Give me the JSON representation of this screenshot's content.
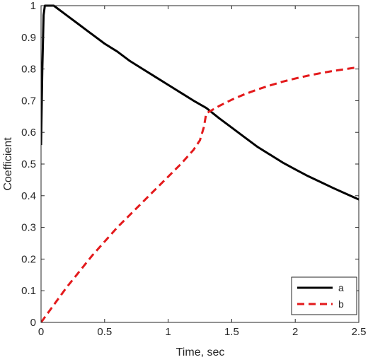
{
  "chart_data": {
    "type": "line",
    "xlabel": "Time, sec",
    "ylabel": "Coefficient",
    "xlim": [
      0,
      2.5
    ],
    "ylim": [
      0,
      1
    ],
    "xticks": [
      0,
      0.5,
      1,
      1.5,
      2,
      2.5
    ],
    "xtick_labels": [
      "0",
      "0.5",
      "1",
      "1.5",
      "2",
      "2.5"
    ],
    "yticks": [
      0,
      0.1,
      0.2,
      0.3,
      0.4,
      0.5,
      0.6,
      0.7,
      0.8,
      0.9,
      1
    ],
    "ytick_labels": [
      "0",
      "0.1",
      "0.2",
      "0.3",
      "0.4",
      "0.5",
      "0.6",
      "0.7",
      "0.8",
      "0.9",
      "1"
    ],
    "grid": false,
    "legend_position": "bottom-right",
    "series": [
      {
        "name": "a",
        "color": "#000000",
        "line_style": "solid",
        "points": [
          [
            0.0,
            0.56
          ],
          [
            0.01,
            0.8
          ],
          [
            0.02,
            0.97
          ],
          [
            0.03,
            1.0
          ],
          [
            0.1,
            1.0
          ],
          [
            0.2,
            0.97
          ],
          [
            0.3,
            0.94
          ],
          [
            0.4,
            0.91
          ],
          [
            0.5,
            0.88
          ],
          [
            0.6,
            0.855
          ],
          [
            0.7,
            0.825
          ],
          [
            0.8,
            0.8
          ],
          [
            0.9,
            0.775
          ],
          [
            1.0,
            0.75
          ],
          [
            1.1,
            0.725
          ],
          [
            1.2,
            0.7
          ],
          [
            1.3,
            0.677
          ],
          [
            1.4,
            0.645
          ],
          [
            1.5,
            0.615
          ],
          [
            1.6,
            0.585
          ],
          [
            1.7,
            0.555
          ],
          [
            1.8,
            0.53
          ],
          [
            1.9,
            0.505
          ],
          [
            2.0,
            0.483
          ],
          [
            2.1,
            0.462
          ],
          [
            2.2,
            0.443
          ],
          [
            2.3,
            0.424
          ],
          [
            2.4,
            0.406
          ],
          [
            2.5,
            0.388
          ]
        ]
      },
      {
        "name": "b",
        "color": "#e31a1c",
        "line_style": "dashed",
        "points": [
          [
            0.0,
            0.0
          ],
          [
            0.1,
            0.055
          ],
          [
            0.2,
            0.11
          ],
          [
            0.3,
            0.16
          ],
          [
            0.4,
            0.21
          ],
          [
            0.5,
            0.255
          ],
          [
            0.6,
            0.3
          ],
          [
            0.7,
            0.34
          ],
          [
            0.8,
            0.38
          ],
          [
            0.9,
            0.42
          ],
          [
            1.0,
            0.46
          ],
          [
            1.1,
            0.5
          ],
          [
            1.2,
            0.545
          ],
          [
            1.25,
            0.575
          ],
          [
            1.28,
            0.615
          ],
          [
            1.3,
            0.66
          ],
          [
            1.4,
            0.683
          ],
          [
            1.5,
            0.703
          ],
          [
            1.6,
            0.72
          ],
          [
            1.7,
            0.735
          ],
          [
            1.8,
            0.748
          ],
          [
            1.9,
            0.76
          ],
          [
            2.0,
            0.77
          ],
          [
            2.1,
            0.779
          ],
          [
            2.2,
            0.787
          ],
          [
            2.3,
            0.794
          ],
          [
            2.4,
            0.8
          ],
          [
            2.5,
            0.806
          ]
        ]
      }
    ]
  }
}
